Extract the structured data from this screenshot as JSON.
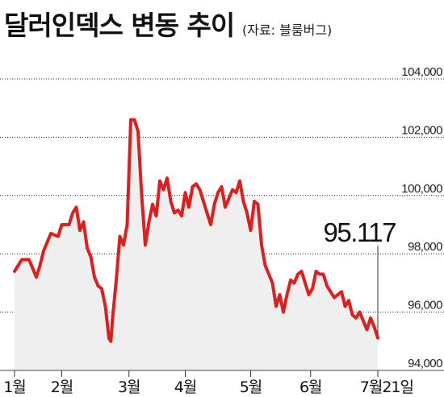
{
  "header": {
    "title": "달러인덱스 변동 추이",
    "source": "(자료: 블룸버그)"
  },
  "colors": {
    "line": "#e01e1e",
    "area": "#efefef",
    "grid": "#222222"
  },
  "chart_data": {
    "type": "line",
    "title": "달러인덱스 변동 추이",
    "xlabel": "",
    "ylabel": "",
    "ylim": [
      94000,
      104000
    ],
    "yticks": [
      94000,
      96000,
      98000,
      100000,
      102000,
      104000
    ],
    "ytick_labels": [
      "94,000",
      "96,000",
      "98,000",
      "100,000",
      "102,000",
      "104,000"
    ],
    "x_start": "1월",
    "x_end": "7월21일",
    "xtick_labels": [
      "1월",
      "2월",
      "3월",
      "4월",
      "5월",
      "6월",
      "7월21일"
    ],
    "x_index_range": [
      0,
      100
    ],
    "xtick_positions": [
      0,
      13,
      31.5,
      47,
      65,
      81.5,
      100
    ],
    "last_value_label": "95.117",
    "grid": true,
    "series": [
      {
        "name": "",
        "x": [
          0,
          2,
          4,
          6,
          7,
          8,
          10,
          12,
          13,
          15,
          16,
          17,
          18,
          19,
          20,
          21,
          22,
          23,
          24,
          25,
          26,
          26.5,
          27,
          28,
          29,
          30,
          31,
          32,
          33,
          34,
          35,
          36,
          37,
          38,
          39,
          40,
          41,
          42,
          43,
          44,
          45,
          46,
          47,
          48,
          49,
          50,
          51,
          52,
          53,
          54,
          55,
          56,
          57,
          58,
          59,
          60,
          61,
          62,
          63,
          64,
          65,
          66,
          67,
          68,
          69,
          70,
          71,
          72,
          73,
          74,
          75,
          76,
          77,
          78,
          79,
          80,
          81,
          82,
          83,
          84,
          85,
          86,
          87,
          88,
          89,
          90,
          91,
          92,
          93,
          94,
          95,
          96,
          97,
          98,
          99,
          100
        ],
        "values": [
          97.4,
          97.8,
          97.8,
          97.2,
          97.6,
          98.1,
          98.7,
          98.6,
          99.0,
          99.0,
          99.4,
          99.6,
          98.8,
          99.1,
          98.2,
          97.9,
          97.2,
          96.9,
          96.8,
          96.2,
          95.1,
          95.0,
          95.8,
          97.1,
          98.6,
          98.3,
          99.0,
          102.6,
          102.6,
          102.2,
          100.0,
          98.3,
          99.1,
          99.7,
          99.3,
          100.5,
          100.2,
          100.6,
          99.8,
          99.4,
          99.5,
          99.3,
          100.1,
          99.6,
          100.3,
          100.4,
          100.2,
          99.8,
          99.4,
          99.0,
          99.7,
          100.1,
          100.3,
          99.6,
          99.9,
          100.2,
          100.1,
          100.5,
          99.8,
          99.4,
          98.8,
          99.8,
          99.7,
          98.3,
          97.6,
          97.3,
          97.0,
          96.2,
          96.6,
          96.0,
          96.6,
          97.1,
          97.0,
          97.3,
          97.4,
          97.0,
          96.6,
          96.8,
          97.4,
          97.3,
          97.3,
          96.9,
          96.7,
          96.5,
          96.6,
          96.7,
          96.2,
          96.4,
          95.9,
          95.8,
          96.0,
          95.7,
          95.4,
          95.8,
          95.5,
          95.117
        ]
      }
    ]
  }
}
